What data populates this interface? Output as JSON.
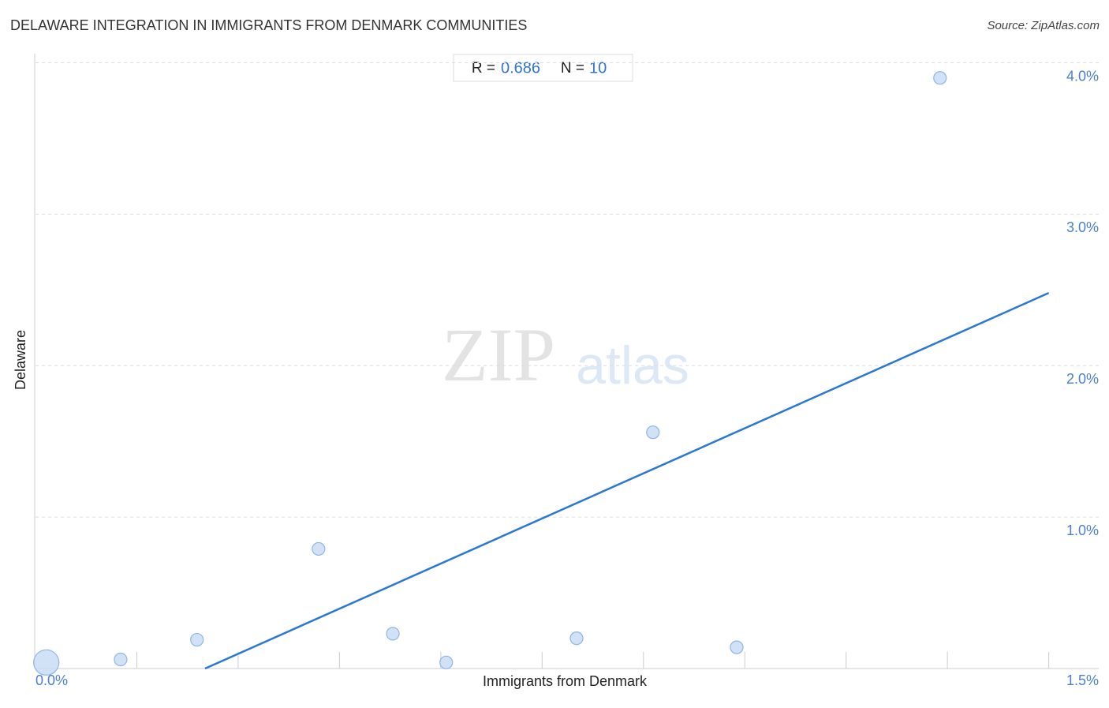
{
  "chart_data": {
    "type": "scatter",
    "title": "DELAWARE INTEGRATION IN IMMIGRANTS FROM DENMARK COMMUNITIES",
    "source": "Source: ZipAtlas.com",
    "x_label": "Immigrants from Denmark",
    "y_label": "Delaware",
    "watermark": [
      "ZIP",
      "atlas"
    ],
    "stats": {
      "r_label": "R =",
      "r": "0.686",
      "n_label": "N =",
      "n": "10"
    },
    "series": [
      {
        "name": "Delaware",
        "color": "#c9ddf5",
        "x": [
          0.016,
          0.126,
          0.239,
          0.419,
          0.529,
          0.608,
          0.801,
          0.914,
          1.038,
          1.339
        ],
        "values": [
          0.04,
          0.06,
          0.19,
          0.79,
          0.23,
          0.04,
          0.2,
          1.56,
          0.14,
          3.9
        ],
        "sizes": [
          16,
          8,
          8,
          8,
          8,
          8,
          8,
          8,
          8,
          8
        ]
      }
    ],
    "trendline": {
      "color": "#2a78d4",
      "x": [
        0.251,
        1.5
      ],
      "values": [
        0,
        2.48
      ]
    },
    "xlim": [
      0,
      1.574
    ],
    "ylim": [
      0,
      4.06
    ],
    "xticks": [
      {
        "value": 0,
        "label": "0.0%"
      },
      {
        "value": 1.5,
        "label": "1.5%"
      }
    ],
    "xtick_marks": [
      0.15,
      0.3,
      0.45,
      0.6,
      0.75,
      0.9,
      1.05,
      1.2,
      1.35,
      1.5
    ],
    "yticks": [
      {
        "value": 1,
        "label": "1.0%"
      },
      {
        "value": 2,
        "label": "2.0%"
      },
      {
        "value": 3,
        "label": "3.0%"
      },
      {
        "value": 4,
        "label": "4.0%"
      }
    ],
    "grid": true
  }
}
